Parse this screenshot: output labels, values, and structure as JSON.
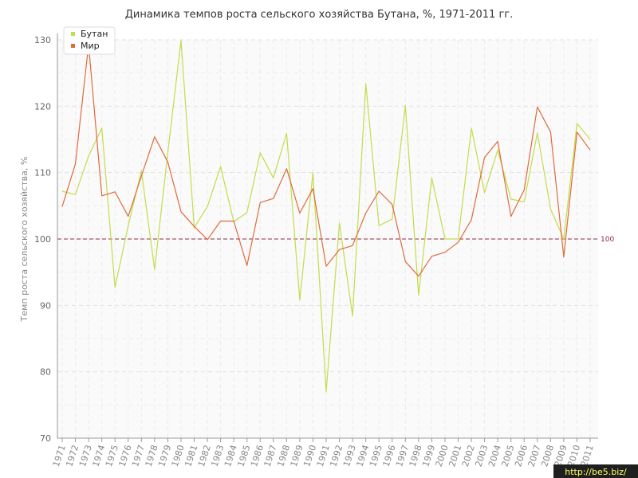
{
  "chart_data": {
    "type": "line",
    "title": "Динамика темпов роста сельского хозяйства Бутана, %, 1971-2011 гг.",
    "ylabel": "Темп роста сельского хозяйства, %",
    "xlabel": "",
    "ylim": [
      70,
      130
    ],
    "yticks": [
      70,
      80,
      90,
      100,
      110,
      120,
      130
    ],
    "grid": true,
    "legend_position": "top-left",
    "categories": [
      "1971",
      "1972",
      "1973",
      "1974",
      "1975",
      "1976",
      "1977",
      "1978",
      "1979",
      "1980",
      "1981",
      "1982",
      "1983",
      "1984",
      "1985",
      "1986",
      "1987",
      "1988",
      "1989",
      "1990",
      "1991",
      "1992",
      "1993",
      "1994",
      "1995",
      "1996",
      "1997",
      "1998",
      "1999",
      "2000",
      "2001",
      "2002",
      "2003",
      "2004",
      "2005",
      "2006",
      "2007",
      "2008",
      "2009",
      "2010",
      "2011"
    ],
    "series": [
      {
        "name": "Бутан",
        "color": "#c3dc4a",
        "values": [
          107.2,
          106.7,
          112.5,
          116.7,
          92.7,
          102.0,
          110.3,
          95.4,
          113.0,
          129.9,
          101.7,
          104.9,
          110.9,
          102.6,
          104.0,
          113.0,
          109.2,
          115.9,
          90.8,
          110.0,
          77.0,
          102.4,
          88.4,
          123.4,
          102.0,
          103.0,
          120.1,
          91.5,
          109.2,
          100.0,
          100.0,
          116.7,
          107.0,
          113.4,
          106.0,
          105.6,
          116.0,
          104.5,
          100.0,
          117.4,
          115.0
        ]
      },
      {
        "name": "Мир",
        "color": "#e06a3c",
        "values": [
          104.9,
          111.3,
          129.3,
          106.5,
          107.1,
          103.4,
          109.5,
          115.4,
          111.6,
          104.1,
          101.9,
          99.9,
          102.7,
          102.7,
          96.0,
          105.5,
          106.1,
          110.6,
          103.9,
          107.6,
          95.9,
          98.4,
          99.0,
          103.9,
          107.2,
          105.2,
          96.6,
          94.4,
          97.4,
          98.0,
          99.5,
          102.9,
          112.3,
          114.7,
          103.4,
          107.4,
          119.9,
          116.1,
          97.3,
          116.1,
          113.4
        ]
      }
    ],
    "reference_line": {
      "value": 100,
      "label": "100",
      "color": "#8b2f3f"
    }
  },
  "watermark": "http://be5.biz/"
}
